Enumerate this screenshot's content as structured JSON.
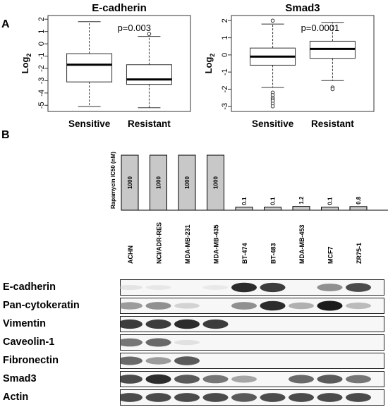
{
  "panel_a": {
    "letter": "A",
    "plots": [
      {
        "title": "E-cadherin",
        "ylabel_main": "Log",
        "ylabel_sub": "2",
        "y_ticks": [
          "2",
          "1",
          "0",
          "-1",
          "-2",
          "-3",
          "-4",
          "-5"
        ],
        "categories": [
          "Sensitive",
          "Resistant"
        ],
        "p_value": "p=0.003"
      },
      {
        "title": "Smad3",
        "ylabel_main": "Log",
        "ylabel_sub": "2",
        "y_ticks": [
          "2",
          "1",
          "0",
          "-1",
          "-2",
          "-3"
        ],
        "categories": [
          "Sensitive",
          "Resistant"
        ],
        "p_value": "p=0.0001"
      }
    ]
  },
  "panel_b": {
    "letter": "B",
    "ic50_axis_label": "Rapamycin IC50 (nM)",
    "cell_lines": [
      "ACHN",
      "NCI/ADR-RES",
      "MDA-MB-231",
      "MDA-MB-435",
      "BT-474",
      "BT-483",
      "MDA-MB-453",
      "MCF7",
      "ZR75-1"
    ],
    "ic50_labels": [
      "1000",
      "1000",
      "1000",
      "1000",
      "0.1",
      "0.1",
      "1.2",
      "0.1",
      "0.8"
    ],
    "blots": [
      {
        "label": "E-cadherin"
      },
      {
        "label": "Pan-cytokeratin"
      },
      {
        "label": "Vimentin"
      },
      {
        "label": "Caveolin-1"
      },
      {
        "label": "Fibronectin"
      },
      {
        "label": "Smad3"
      },
      {
        "label": "Actin"
      }
    ]
  },
  "chart_data": [
    {
      "type": "box",
      "title": "E-cadherin",
      "ylabel": "Log2",
      "ylim": [
        -5.5,
        2.3
      ],
      "categories": [
        "Sensitive",
        "Resistant"
      ],
      "boxes": [
        {
          "name": "Sensitive",
          "whisker_low": -5.1,
          "q1": -3.1,
          "median": -1.7,
          "q3": -0.8,
          "whisker_high": 1.8,
          "outliers": []
        },
        {
          "name": "Resistant",
          "whisker_low": -5.2,
          "q1": -3.3,
          "median": -2.9,
          "q3": -1.7,
          "whisker_high": 0.6,
          "outliers": [
            0.8
          ]
        }
      ],
      "annotation": "p=0.003"
    },
    {
      "type": "box",
      "title": "Smad3",
      "ylabel": "Log2",
      "ylim": [
        -3.3,
        2.3
      ],
      "categories": [
        "Sensitive",
        "Resistant"
      ],
      "boxes": [
        {
          "name": "Sensitive",
          "whisker_low": -1.9,
          "q1": -0.6,
          "median": -0.1,
          "q3": 0.4,
          "whisker_high": 1.8,
          "outliers": [
            2.0,
            -2.2,
            -2.35,
            -2.5,
            -2.6,
            -2.7,
            -2.85,
            -3.0
          ]
        },
        {
          "name": "Resistant",
          "whisker_low": -1.5,
          "q1": -0.2,
          "median": 0.35,
          "q3": 0.8,
          "whisker_high": 1.9,
          "outliers": [
            -1.9,
            -2.0
          ]
        }
      ],
      "annotation": "p=0.0001"
    },
    {
      "type": "bar",
      "ylabel": "Rapamycin IC50 (nM)",
      "categories": [
        "ACHN",
        "NCI/ADR-RES",
        "MDA-MB-231",
        "MDA-MB-435",
        "BT-474",
        "BT-483",
        "MDA-MB-453",
        "MCF7",
        "ZR75-1"
      ],
      "values": [
        1000,
        1000,
        1000,
        1000,
        0.1,
        0.1,
        1.2,
        0.1,
        0.8
      ],
      "data_labels": [
        "1000",
        "1000",
        "1000",
        "1000",
        "0.1",
        "0.1",
        "1.2",
        "0.1",
        "0.8"
      ]
    }
  ],
  "blot_intensity": {
    "note_levels": "0 = none, 1 = strongest",
    "rows": [
      [
        0.12,
        0.1,
        0.0,
        0.08,
        0.95,
        0.9,
        0.0,
        0.6,
        0.85
      ],
      [
        0.55,
        0.6,
        0.25,
        0.0,
        0.6,
        0.95,
        0.45,
        1.0,
        0.4
      ],
      [
        0.9,
        0.9,
        0.95,
        0.9,
        0.0,
        0.0,
        0.0,
        0.0,
        0.0
      ],
      [
        0.7,
        0.75,
        0.15,
        0.0,
        0.0,
        0.0,
        0.0,
        0.0,
        0.0
      ],
      [
        0.75,
        0.55,
        0.8,
        0.0,
        0.0,
        0.0,
        0.0,
        0.0,
        0.0
      ],
      [
        0.85,
        0.95,
        0.8,
        0.7,
        0.5,
        0.0,
        0.75,
        0.8,
        0.7
      ],
      [
        0.85,
        0.85,
        0.85,
        0.85,
        0.8,
        0.85,
        0.85,
        0.85,
        0.85
      ]
    ]
  }
}
